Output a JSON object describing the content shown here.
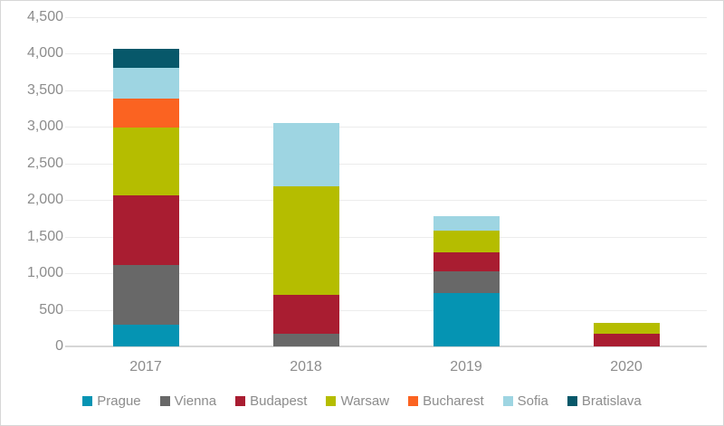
{
  "chart_data": {
    "type": "bar",
    "stacked": true,
    "title": "",
    "xlabel": "",
    "ylabel": "",
    "categories": [
      "2017",
      "2018",
      "2019",
      "2020"
    ],
    "series": [
      {
        "name": "Prague",
        "color": "#0594B3",
        "values": [
          300,
          0,
          730,
          0
        ]
      },
      {
        "name": "Vienna",
        "color": "#686868",
        "values": [
          810,
          170,
          300,
          0
        ]
      },
      {
        "name": "Budapest",
        "color": "#A91D31",
        "values": [
          950,
          540,
          250,
          170
        ]
      },
      {
        "name": "Warsaw",
        "color": "#B5BD00",
        "values": [
          930,
          1480,
          300,
          150
        ]
      },
      {
        "name": "Bucharest",
        "color": "#FB6321",
        "values": [
          400,
          0,
          0,
          0
        ]
      },
      {
        "name": "Sofia",
        "color": "#9ED5E2",
        "values": [
          420,
          870,
          200,
          0
        ]
      },
      {
        "name": "Bratislava",
        "color": "#07586A",
        "values": [
          260,
          0,
          0,
          0
        ]
      }
    ],
    "ylim": [
      0,
      4500
    ],
    "ytick_step": 500,
    "ytick_labels": [
      "0",
      "500",
      "1,000",
      "1,500",
      "2,000",
      "2,500",
      "3,000",
      "3,500",
      "4,000",
      "4,500"
    ],
    "grid": true,
    "legend_position": "bottom",
    "legend_items": [
      "Prague",
      "Vienna",
      "Budapest",
      "Warsaw",
      "Bucharest",
      "Sofia",
      "Bratislava"
    ]
  }
}
